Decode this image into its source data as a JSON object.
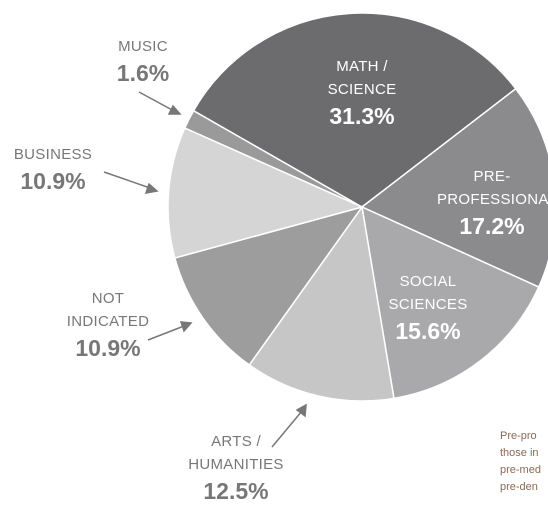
{
  "chart_data": {
    "type": "pie",
    "categories": [
      "MUSIC",
      "MATH / SCIENCE",
      "PRE-PROFESSIONAL",
      "SOCIAL SCIENCES",
      "ARTS / HUMANITIES",
      "NOT INDICATED",
      "BUSINESS"
    ],
    "values": [
      1.6,
      31.3,
      17.2,
      15.6,
      12.5,
      10.9,
      10.9
    ],
    "value_labels": [
      "1.6%",
      "31.3%",
      "17.2%",
      "15.6%",
      "12.5%",
      "10.9%",
      "10.9%"
    ],
    "colors": [
      "#9a9a9b",
      "#6c6c6e",
      "#8b8b8d",
      "#a9a9ab",
      "#c6c6c6",
      "#9d9d9e",
      "#d5d5d5"
    ],
    "note": [
      "Pre-pro",
      "those in",
      "pre-med",
      "pre-den"
    ]
  }
}
